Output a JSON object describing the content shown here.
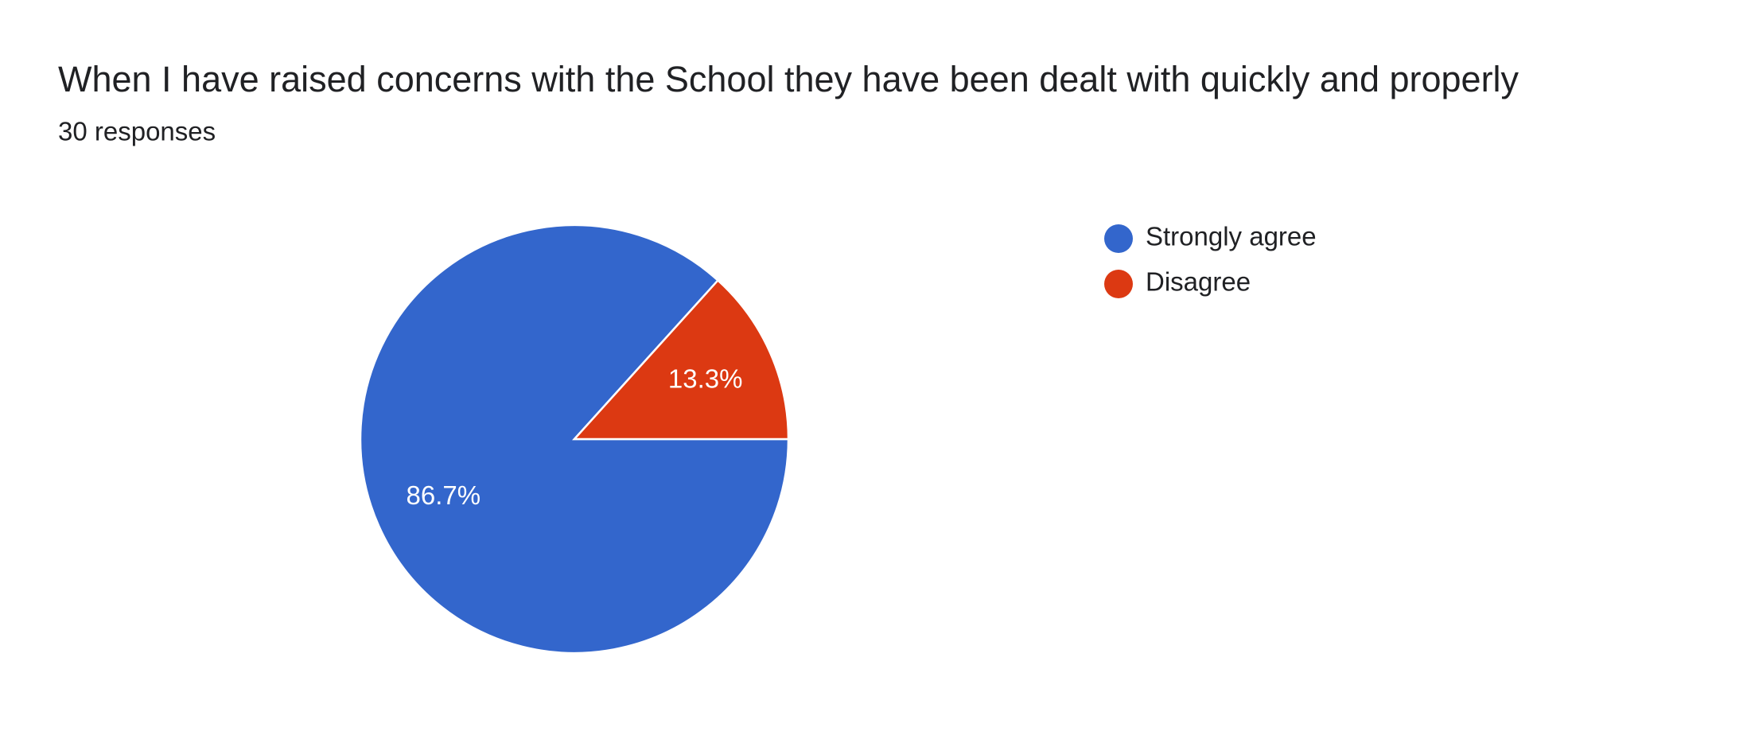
{
  "chart_data": {
    "type": "pie",
    "title": "When I have raised concerns with the School they have been dealt with quickly and properly",
    "subtitle": "30 responses",
    "categories": [
      "Strongly agree",
      "Disagree"
    ],
    "values": [
      86.7,
      13.3
    ],
    "value_labels": [
      "86.7%",
      "13.3%"
    ],
    "colors": [
      "#3366cc",
      "#dc3912"
    ],
    "legend": "right"
  }
}
